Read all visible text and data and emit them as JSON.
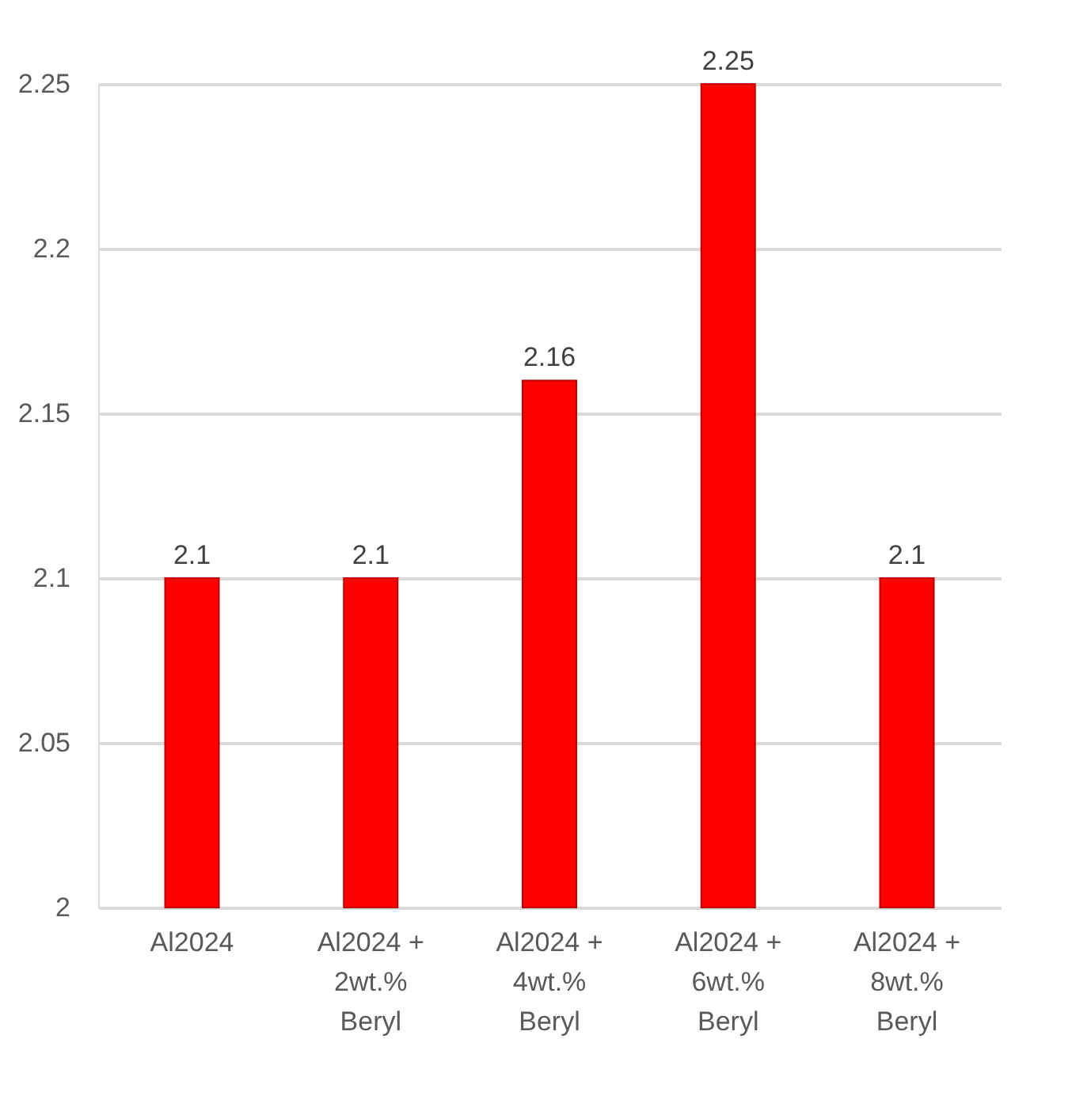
{
  "chart_data": {
    "type": "bar",
    "categories": [
      "Al2024",
      "Al2024 + 2wt.% Beryl",
      "Al2024 + 4wt.% Beryl",
      "Al2024 + 6wt.% Beryl",
      "Al2024 + 8wt.% Beryl"
    ],
    "values": [
      2.1,
      2.1,
      2.16,
      2.25,
      2.1
    ],
    "color": "#ff0000",
    "ylim": [
      2,
      2.25
    ],
    "yticks": [
      2,
      2.05,
      2.1,
      2.15,
      2.2,
      2.25
    ],
    "grid": "y",
    "data_labels": true
  }
}
